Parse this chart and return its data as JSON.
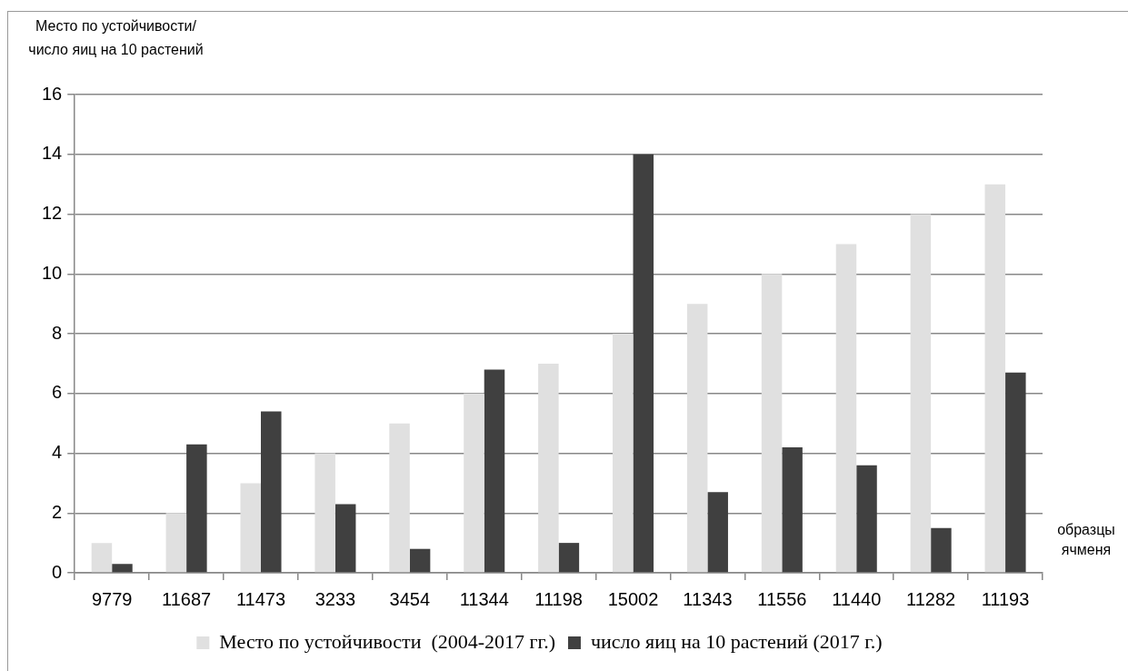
{
  "chart_data": {
    "type": "bar",
    "ylabel": "Место по устойчивости/число яиц на 10 растений",
    "xlabel": "образцы ячменя",
    "categories": [
      "9779",
      "11687",
      "11473",
      "3233",
      "3454",
      "11344",
      "11198",
      "15002",
      "11343",
      "11556",
      "11440",
      "11282",
      "11193"
    ],
    "series": [
      {
        "name": "Место по устойчивости  (2004-2017 гг.)",
        "color": "#e0e0e0",
        "values": [
          1,
          2,
          3,
          4,
          5,
          6,
          7,
          8,
          9,
          10,
          11,
          12,
          13
        ]
      },
      {
        "name": "число яиц на 10 растений (2017 г.)",
        "color": "#404040",
        "values": [
          0.3,
          4.3,
          5.4,
          2.3,
          0.8,
          6.8,
          1.0,
          14,
          2.7,
          4.2,
          3.6,
          1.5,
          6.7
        ]
      }
    ],
    "ylim": [
      0,
      16
    ],
    "yticks": [
      0,
      2,
      4,
      6,
      8,
      10,
      12,
      14,
      16
    ],
    "grid": "y",
    "legend": "bottom"
  }
}
